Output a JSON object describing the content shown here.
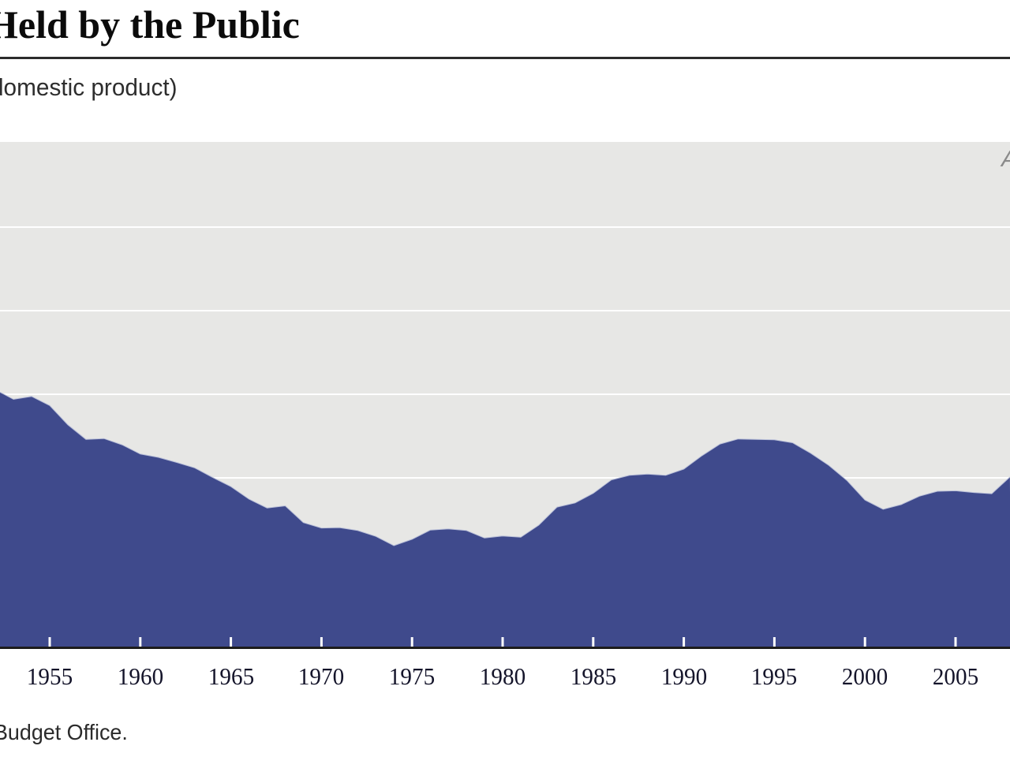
{
  "header": {
    "title_visible": "Held by the Public",
    "subtitle_visible": "domestic product)",
    "annotation_partial": "Actual"
  },
  "footer": {
    "source_visible": "Budget Office."
  },
  "colors": {
    "area_fill": "#3f4a8c",
    "area_edge": "#b9bfd8",
    "plot_background": "#e7e7e5",
    "gridline": "#ffffff",
    "axis_line": "#1c1c1c",
    "tick": "#ffffff",
    "tick_label": "#14142a",
    "annotation": "#8a8a8a"
  },
  "chart_data": {
    "type": "area",
    "title": "Held by the Public",
    "subtitle": "domestic product)",
    "xlabel": "",
    "ylabel": "",
    "grid": "horizontal white gridlines, no y-axis labels visible",
    "legend_position": "none",
    "x_tick_labels": [
      "1955",
      "1960",
      "1965",
      "1970",
      "1975",
      "1980",
      "1985",
      "1990",
      "1995",
      "2000",
      "2005"
    ],
    "x_tick_years": [
      1955,
      1960,
      1965,
      1970,
      1975,
      1980,
      1985,
      1990,
      1995,
      2000,
      2005
    ],
    "xlim": [
      1952.3,
      2008.0
    ],
    "ylim": [
      0,
      121
    ],
    "gridlines_at_pct": [
      40,
      60,
      80,
      100
    ],
    "series": [
      {
        "name": "debt-held-by-public-percent-of-gdp",
        "x": [
          1952,
          1953,
          1954,
          1955,
          1956,
          1957,
          1958,
          1959,
          1960,
          1961,
          1962,
          1963,
          1964,
          1965,
          1966,
          1967,
          1968,
          1969,
          1970,
          1971,
          1972,
          1973,
          1974,
          1975,
          1976,
          1977,
          1978,
          1979,
          1980,
          1981,
          1982,
          1983,
          1984,
          1985,
          1986,
          1987,
          1988,
          1989,
          1990,
          1991,
          1992,
          1993,
          1994,
          1995,
          1996,
          1997,
          1998,
          1999,
          2000,
          2001,
          2002,
          2003,
          2004,
          2005,
          2006,
          2007,
          2008
        ],
        "values": [
          61.1,
          58.8,
          59.5,
          57.3,
          52.7,
          49.2,
          49.4,
          47.9,
          45.7,
          44.9,
          43.7,
          42.4,
          40.1,
          37.9,
          34.9,
          32.8,
          33.3,
          29.3,
          28.0,
          28.1,
          27.4,
          26.0,
          23.8,
          25.3,
          27.5,
          27.8,
          27.4,
          25.6,
          26.1,
          25.8,
          28.7,
          33.0,
          34.0,
          36.3,
          39.5,
          40.6,
          40.9,
          40.6,
          42.1,
          45.3,
          48.1,
          49.3,
          49.2,
          49.1,
          48.4,
          45.9,
          43.0,
          39.4,
          34.7,
          32.5,
          33.6,
          35.6,
          36.8,
          36.9,
          36.5,
          36.2,
          40.2
        ]
      }
    ]
  }
}
